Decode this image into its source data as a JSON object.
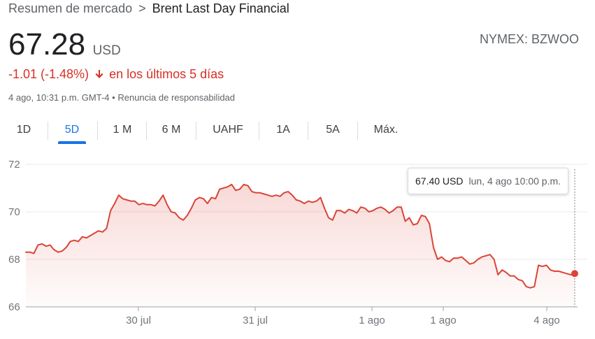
{
  "breadcrumb": {
    "root": "Resumen de mercado",
    "separator": ">",
    "current": "Brent Last Day Financial"
  },
  "quote": {
    "price": "67.28",
    "currency": "USD",
    "ticker": "NYMEX: BZWOO",
    "change": "-1.01 (-1.48%)",
    "change_direction_icon": "arrow-down-icon",
    "change_period": "en los últimos 5 días",
    "timestamp": "4 ago, 10:31 p.m. GMT-4",
    "bullet": "•",
    "disclaimer": "Renuncia de responsabilidad"
  },
  "tabs": [
    {
      "label": "1D",
      "active": false
    },
    {
      "label": "5D",
      "active": true
    },
    {
      "label": "1 M",
      "active": false
    },
    {
      "label": "6 M",
      "active": false
    },
    {
      "label": "UAHF",
      "active": false
    },
    {
      "label": "1A",
      "active": false
    },
    {
      "label": "5A",
      "active": false
    },
    {
      "label": "Máx.",
      "active": false
    }
  ],
  "tooltip": {
    "price": "67.40 USD",
    "time": "lun, 4 ago 10:00 p.m."
  },
  "colors": {
    "line": "#db4437",
    "negative": "#d93025",
    "accent": "#1a73e8",
    "grid": "#e8eaed"
  },
  "chart_data": {
    "type": "area",
    "title": "",
    "xlabel": "",
    "ylabel": "",
    "ylim": [
      66,
      72
    ],
    "y_ticks": [
      "72",
      "70",
      "68",
      "66"
    ],
    "x_ticks": [
      "30 jul",
      "31 jul",
      "1 ago",
      "1 ago",
      "4 ago"
    ],
    "grid": true,
    "values": [
      68.3,
      68.3,
      68.25,
      68.6,
      68.65,
      68.55,
      68.6,
      68.4,
      68.3,
      68.35,
      68.5,
      68.75,
      68.8,
      68.75,
      68.95,
      68.9,
      69.0,
      69.1,
      69.2,
      69.15,
      69.3,
      70.05,
      70.35,
      70.7,
      70.55,
      70.5,
      70.45,
      70.45,
      70.3,
      70.35,
      70.3,
      70.3,
      70.25,
      70.45,
      70.7,
      70.3,
      70.0,
      69.95,
      69.75,
      69.65,
      69.85,
      70.15,
      70.5,
      70.6,
      70.55,
      70.35,
      70.6,
      70.55,
      70.95,
      71.0,
      71.05,
      71.15,
      70.9,
      70.95,
      71.15,
      71.1,
      70.85,
      70.8,
      70.8,
      70.75,
      70.7,
      70.65,
      70.7,
      70.65,
      70.8,
      70.85,
      70.7,
      70.5,
      70.45,
      70.35,
      70.45,
      70.4,
      70.45,
      70.6,
      70.15,
      69.75,
      69.65,
      70.05,
      70.05,
      69.95,
      70.1,
      70.05,
      69.95,
      70.2,
      70.15,
      70.0,
      70.05,
      70.15,
      70.2,
      70.1,
      69.95,
      70.05,
      70.2,
      70.2,
      69.6,
      69.75,
      69.45,
      69.5,
      69.85,
      69.8,
      69.5,
      68.5,
      68.0,
      68.1,
      67.95,
      67.9,
      68.05,
      68.05,
      68.1,
      67.95,
      67.8,
      67.85,
      68.0,
      68.1,
      68.15,
      68.2,
      68.0,
      67.35,
      67.55,
      67.45,
      67.3,
      67.3,
      67.15,
      67.1,
      66.85,
      66.8,
      66.85,
      67.75,
      67.7,
      67.75,
      67.55,
      67.5,
      67.5,
      67.45,
      67.4,
      67.35,
      67.4
    ]
  }
}
